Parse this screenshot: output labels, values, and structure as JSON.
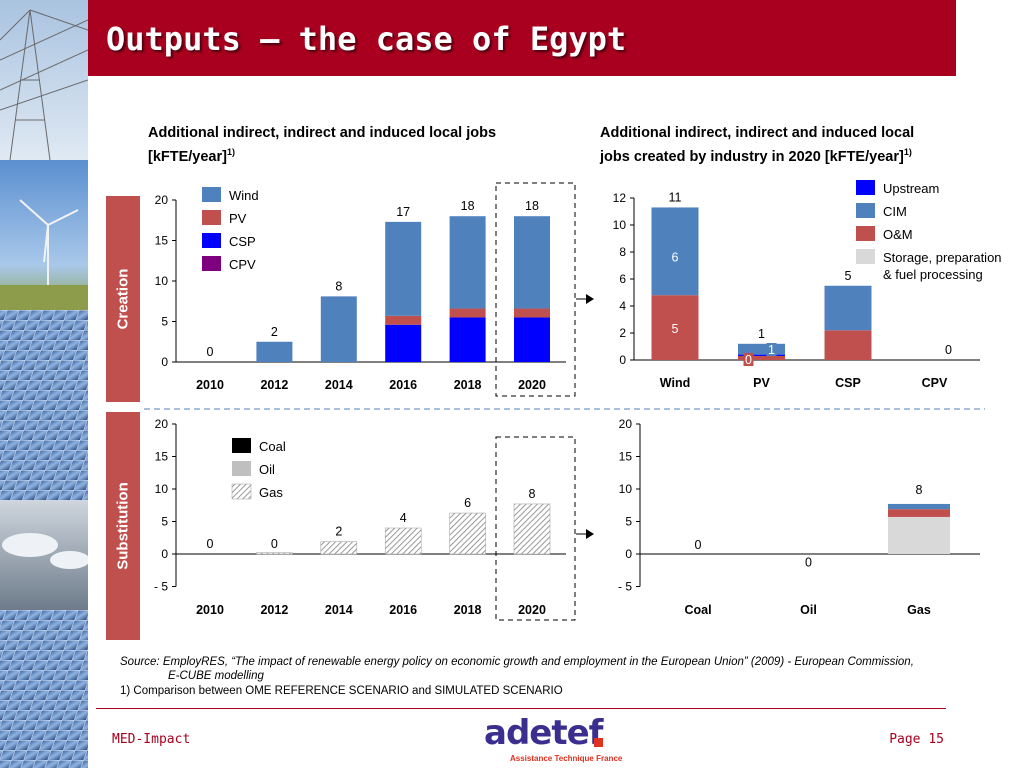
{
  "slide": {
    "title": "Outputs – the case of Egypt",
    "creation_label": "Creation",
    "substitution_label": "Substitution",
    "source_line1": "Source: EmployRES, “The impact of renewable energy policy on economic growth and employment in the European Union” (2009) - European Commission,",
    "source_line2": "E-CUBE modelling",
    "footnote": "1) Comparison between OME REFERENCE SCENARIO and SIMULATED SCENARIO",
    "footer_left": "MED-Impact",
    "footer_right": "Page 15",
    "logo_text": "adetef",
    "logo_tagline": "Assistance Technique France"
  },
  "colors": {
    "wind": "#4f81bd",
    "pv": "#c0504d",
    "csp": "#0000ff",
    "cpv": "#7f007f",
    "upstream": "#0000ff",
    "cim": "#4f81bd",
    "om": "#c0504d",
    "storage": "#d9d9d9",
    "coal": "#000000",
    "oil": "#bfbfbf",
    "brand": "#a8001e"
  },
  "chart_data": [
    {
      "id": "creation_years",
      "type": "bar",
      "stacked": true,
      "title": "Additional indirect, indirect and induced local jobs [kFTE/year]",
      "title_line1": "Additional indirect, indirect and induced local jobs",
      "title_line2": "[kFTE/year]",
      "title_sup": "1)",
      "categories": [
        "2010",
        "2012",
        "2014",
        "2016",
        "2018",
        "2020"
      ],
      "ylim": [
        0,
        20
      ],
      "yticks": [
        0,
        5,
        10,
        15,
        20
      ],
      "series": [
        {
          "name": "CSP",
          "values": [
            0,
            0,
            0,
            4.6,
            5.5,
            5.5
          ]
        },
        {
          "name": "PV",
          "values": [
            0,
            0,
            0,
            1.1,
            1.1,
            1.1
          ]
        },
        {
          "name": "Wind",
          "values": [
            0,
            2.5,
            8.1,
            11.6,
            11.4,
            11.4
          ]
        },
        {
          "name": "CPV",
          "values": [
            0,
            0,
            0,
            0,
            0,
            0
          ]
        }
      ],
      "legend_order": [
        "Wind",
        "PV",
        "CSP",
        "CPV"
      ],
      "totals": [
        "0",
        "2",
        "8",
        "17",
        "18",
        "18"
      ],
      "highlighted_category": "2020",
      "legend": "top-left"
    },
    {
      "id": "creation_industry",
      "type": "bar",
      "stacked": true,
      "title": "Additional indirect, indirect and induced local jobs created by industry in 2020 [kFTE/year]",
      "title_line1": "Additional indirect, indirect and induced local",
      "title_line2": "jobs created by industry in 2020 [kFTE/year]",
      "title_sup": "1)",
      "categories": [
        "Wind",
        "PV",
        "CSP",
        "CPV"
      ],
      "ylim": [
        0,
        12
      ],
      "yticks": [
        0,
        2,
        4,
        6,
        8,
        10,
        12
      ],
      "series": [
        {
          "name": "O&M",
          "values": [
            4.8,
            0.3,
            2.2,
            0
          ]
        },
        {
          "name": "Upstream",
          "values": [
            0,
            0.1,
            0,
            0
          ]
        },
        {
          "name": "CIM",
          "values": [
            6.5,
            0.8,
            3.3,
            0
          ]
        },
        {
          "name": "Storage, preparation & fuel processing",
          "values": [
            0,
            0,
            0,
            0
          ]
        }
      ],
      "legend_order": [
        "Upstream",
        "CIM",
        "O&M",
        "Storage, preparation",
        "& fuel processing"
      ],
      "totals": [
        "11",
        "1",
        "5",
        "0"
      ],
      "segment_labels": [
        {
          "category": "Wind",
          "text": "6",
          "y": 7.6
        },
        {
          "category": "Wind",
          "text": "5",
          "y": 2.3
        },
        {
          "category": "PV",
          "text": "1",
          "y": 0.8
        },
        {
          "category": "PV",
          "text": "0",
          "y": 0.1
        }
      ],
      "legend": "top-right"
    },
    {
      "id": "substitution_years",
      "type": "bar",
      "stacked": true,
      "categories": [
        "2010",
        "2012",
        "2014",
        "2016",
        "2018",
        "2020"
      ],
      "ylim": [
        -5,
        20
      ],
      "yticks": [
        -5,
        0,
        5,
        10,
        15,
        20
      ],
      "ytick_labels": [
        "- 5",
        "0",
        "5",
        "10",
        "15",
        "20"
      ],
      "series": [
        {
          "name": "Coal",
          "values": [
            0,
            0,
            0,
            0,
            0,
            0
          ]
        },
        {
          "name": "Oil",
          "values": [
            0,
            0,
            0,
            0,
            0,
            0
          ]
        },
        {
          "name": "Gas",
          "values": [
            0,
            0.2,
            1.9,
            4.0,
            6.3,
            7.7
          ]
        }
      ],
      "totals": [
        "0",
        "0",
        "2",
        "4",
        "6",
        "8"
      ],
      "highlighted_category": "2020",
      "legend": "top-left"
    },
    {
      "id": "substitution_fuel",
      "type": "bar",
      "stacked": true,
      "categories": [
        "Coal",
        "Oil",
        "Gas"
      ],
      "ylim": [
        -5,
        20
      ],
      "yticks": [
        -5,
        0,
        5,
        10,
        15,
        20
      ],
      "ytick_labels": [
        "- 5",
        "0",
        "5",
        "10",
        "15",
        "20"
      ],
      "series": [
        {
          "name": "Storage, preparation & fuel processing",
          "values": [
            0,
            0,
            5.7
          ]
        },
        {
          "name": "O&M",
          "values": [
            0,
            0,
            1.2
          ]
        },
        {
          "name": "CIM",
          "values": [
            0,
            0,
            0.8
          ]
        }
      ],
      "totals": [
        "0",
        "0",
        "8"
      ],
      "total_label_positions": [
        0.8,
        -1.9,
        9.2
      ]
    }
  ]
}
